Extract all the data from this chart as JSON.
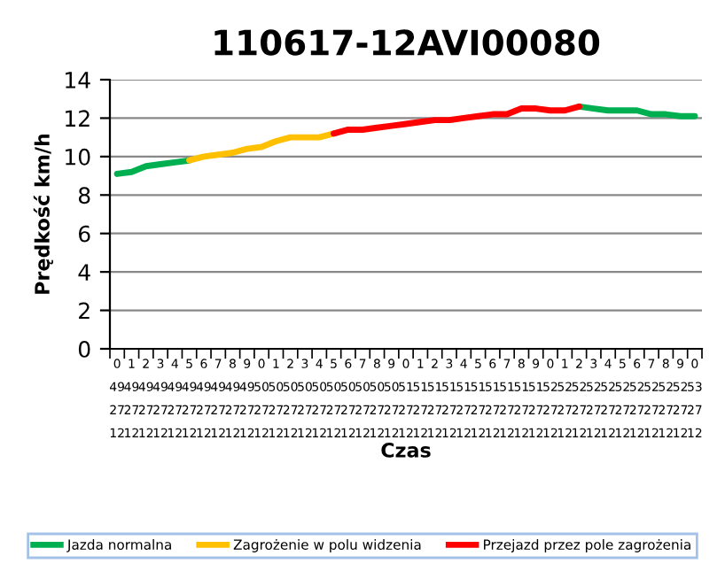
{
  "chart_data": {
    "type": "line",
    "title": "110617-12AVI00080",
    "xlabel": "Czas",
    "ylabel": "Prędkość km/h",
    "categories": [
      "0\n49\n27\n12",
      "1\n49\n27\n12",
      "2\n49\n27\n12",
      "3\n49\n27\n12",
      "4\n49\n27\n12",
      "5\n49\n27\n12",
      "6\n49\n27\n12",
      "7\n49\n27\n12",
      "8\n49\n27\n12",
      "9\n49\n27\n12",
      "0\n50\n27\n12",
      "1\n50\n27\n12",
      "2\n50\n27\n12",
      "3\n50\n27\n12",
      "4\n50\n27\n12",
      "5\n50\n27\n12",
      "6\n50\n27\n12",
      "7\n50\n27\n12",
      "8\n50\n27\n12",
      "9\n50\n27\n12",
      "0\n51\n27\n12",
      "1\n51\n27\n12",
      "2\n51\n27\n12",
      "3\n51\n27\n12",
      "4\n51\n27\n12",
      "5\n51\n27\n12",
      "6\n51\n27\n12",
      "7\n51\n27\n12",
      "8\n51\n27\n12",
      "9\n51\n27\n12",
      "0\n52\n27\n12",
      "1\n52\n27\n12",
      "2\n52\n27\n12",
      "3\n52\n27\n12",
      "4\n52\n27\n12",
      "5\n52\n27\n12",
      "6\n52\n27\n12",
      "7\n52\n27\n12",
      "8\n52\n27\n12",
      "9\n52\n27\n12",
      "0\n53\n27\n12"
    ],
    "series": [
      {
        "name": "Jazda normalna",
        "color": "#00b050",
        "values": [
          9.1,
          9.2,
          9.5,
          9.6,
          9.7,
          9.8,
          null,
          null,
          null,
          null,
          null,
          null,
          null,
          null,
          null,
          null,
          null,
          null,
          null,
          null,
          null,
          null,
          null,
          null,
          null,
          null,
          null,
          null,
          null,
          null,
          null,
          null,
          12.6,
          12.5,
          12.4,
          12.4,
          12.4,
          12.2,
          12.2,
          12.1,
          12.1
        ]
      },
      {
        "name": "Zagrożenie w polu widzenia",
        "color": "#ffc000",
        "values": [
          null,
          null,
          null,
          null,
          null,
          9.8,
          10.0,
          10.1,
          10.2,
          10.4,
          10.5,
          10.8,
          11.0,
          11.0,
          11.0,
          11.2,
          null,
          null,
          null,
          null,
          null,
          null,
          null,
          null,
          null,
          null,
          null,
          null,
          null,
          null,
          null,
          null,
          null,
          null,
          null,
          null,
          null,
          null,
          null,
          null,
          null
        ]
      },
      {
        "name": "Przejazd przez pole zagrożenia",
        "color": "#ff0000",
        "values": [
          null,
          null,
          null,
          null,
          null,
          null,
          null,
          null,
          null,
          null,
          null,
          null,
          null,
          null,
          null,
          11.2,
          11.4,
          11.4,
          11.5,
          11.6,
          11.7,
          11.8,
          11.9,
          11.9,
          12.0,
          12.1,
          12.2,
          12.2,
          12.5,
          12.5,
          12.4,
          12.4,
          12.6,
          null,
          null,
          null,
          null,
          null,
          null,
          null,
          null
        ]
      }
    ],
    "ylim": [
      0,
      14
    ],
    "yticks": [
      0,
      2,
      4,
      6,
      8,
      10,
      12,
      14
    ],
    "grid": "y",
    "legend": "bottom",
    "marker": "none",
    "line_style": "solid"
  }
}
